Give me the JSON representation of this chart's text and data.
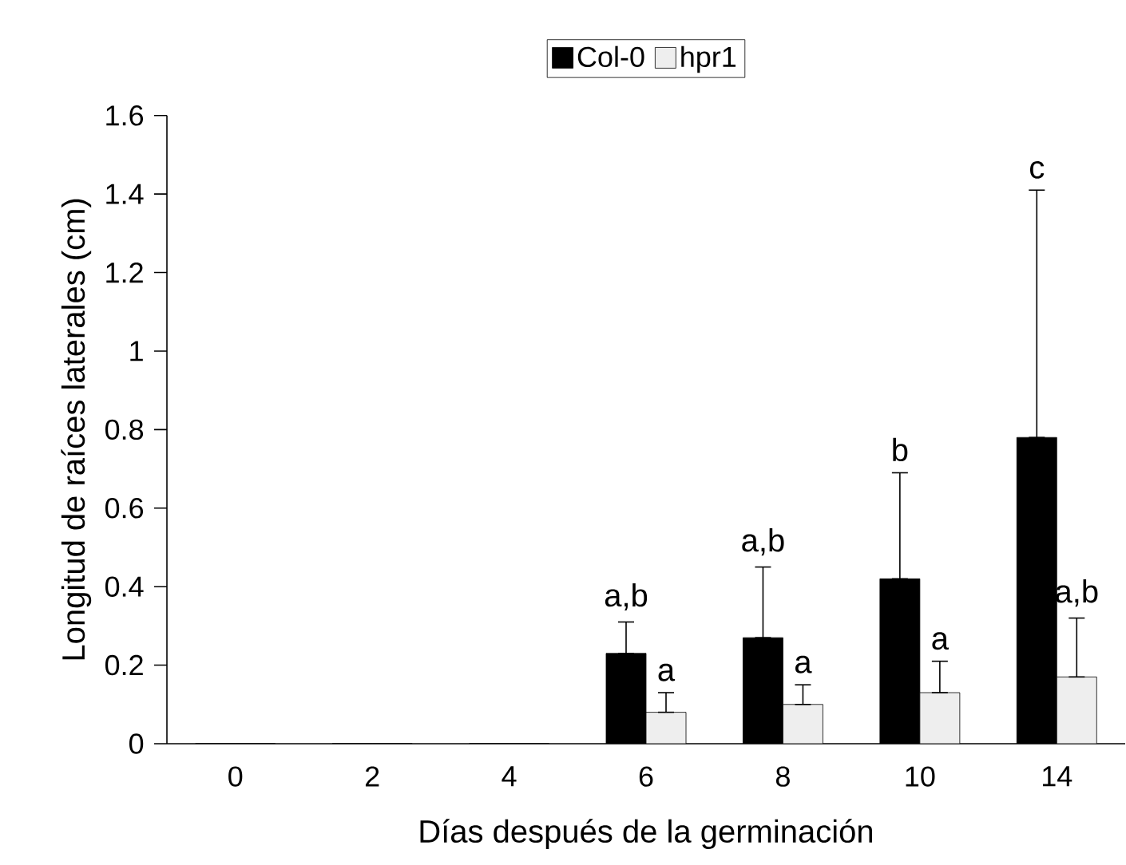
{
  "chart_data": {
    "type": "bar",
    "xlabel": "Días después de la germinación",
    "ylabel": "Longitud de raíces laterales (cm)",
    "categories": [
      "0",
      "2",
      "4",
      "6",
      "8",
      "10",
      "14"
    ],
    "series": [
      {
        "name": "Col-0",
        "color": "#000000",
        "values": [
          0,
          0,
          0,
          0.23,
          0.27,
          0.42,
          0.78
        ],
        "errors": [
          null,
          null,
          null,
          [
            0.23,
            0.31
          ],
          [
            0.27,
            0.45
          ],
          [
            0.42,
            0.69
          ],
          [
            0.78,
            1.41
          ]
        ]
      },
      {
        "name": "hpr1",
        "color": "#eeeeee",
        "values": [
          0,
          0,
          0,
          0.08,
          0.1,
          0.13,
          0.17
        ],
        "errors": [
          null,
          null,
          null,
          [
            0.08,
            0.13
          ],
          [
            0.1,
            0.15
          ],
          [
            0.13,
            0.21
          ],
          [
            0.17,
            0.32
          ]
        ]
      }
    ],
    "ylim": [
      0,
      1.6
    ],
    "yticks": [
      0,
      0.2,
      0.4,
      0.6,
      0.8,
      1,
      1.2,
      1.4,
      1.6
    ],
    "legend": "top",
    "grid": false,
    "annotations": [
      "a,b",
      "a",
      "a,b",
      "a",
      "b",
      "a",
      "c",
      "a,b"
    ]
  }
}
